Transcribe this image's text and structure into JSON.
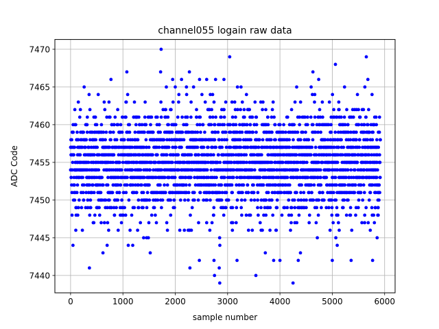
{
  "chart_data": {
    "type": "scatter",
    "title": "channel055 logain raw data",
    "xlabel": "sample number",
    "ylabel": "ADC Code",
    "xlim": [
      -300,
      6200
    ],
    "ylim": [
      7437.7,
      7471.3
    ],
    "xticks": [
      0,
      1000,
      2000,
      3000,
      4000,
      5000,
      6000
    ],
    "yticks": [
      7440,
      7445,
      7450,
      7455,
      7460,
      7465,
      7470
    ],
    "grid": true,
    "marker_color": "#0000ff",
    "n_samples": 5920,
    "typical_range": [
      7443,
      7466
    ],
    "center": 7455,
    "outliers": [
      {
        "x": 1730,
        "y": 7470
      },
      {
        "x": 3040,
        "y": 7469
      },
      {
        "x": 5650,
        "y": 7469
      },
      {
        "x": 5060,
        "y": 7468
      },
      {
        "x": 1075,
        "y": 7467
      },
      {
        "x": 1720,
        "y": 7467
      },
      {
        "x": 2270,
        "y": 7467
      },
      {
        "x": 4630,
        "y": 7467
      },
      {
        "x": 1950,
        "y": 7466
      },
      {
        "x": 2120,
        "y": 7466
      },
      {
        "x": 2600,
        "y": 7466
      },
      {
        "x": 2770,
        "y": 7466
      },
      {
        "x": 2930,
        "y": 7466
      },
      {
        "x": 4740,
        "y": 7466
      },
      {
        "x": 5680,
        "y": 7466
      },
      {
        "x": 2280,
        "y": 7441
      },
      {
        "x": 360,
        "y": 7441
      },
      {
        "x": 2840,
        "y": 7441
      },
      {
        "x": 2750,
        "y": 7440
      },
      {
        "x": 3540,
        "y": 7440
      },
      {
        "x": 2850,
        "y": 7439
      },
      {
        "x": 4250,
        "y": 7439
      },
      {
        "x": 5000,
        "y": 7442
      },
      {
        "x": 5360,
        "y": 7442
      },
      {
        "x": 5770,
        "y": 7442
      },
      {
        "x": 3880,
        "y": 7442
      },
      {
        "x": 4000,
        "y": 7442
      },
      {
        "x": 2460,
        "y": 7442
      },
      {
        "x": 2740,
        "y": 7442
      },
      {
        "x": 3180,
        "y": 7442
      },
      {
        "x": 4350,
        "y": 7442
      }
    ]
  }
}
